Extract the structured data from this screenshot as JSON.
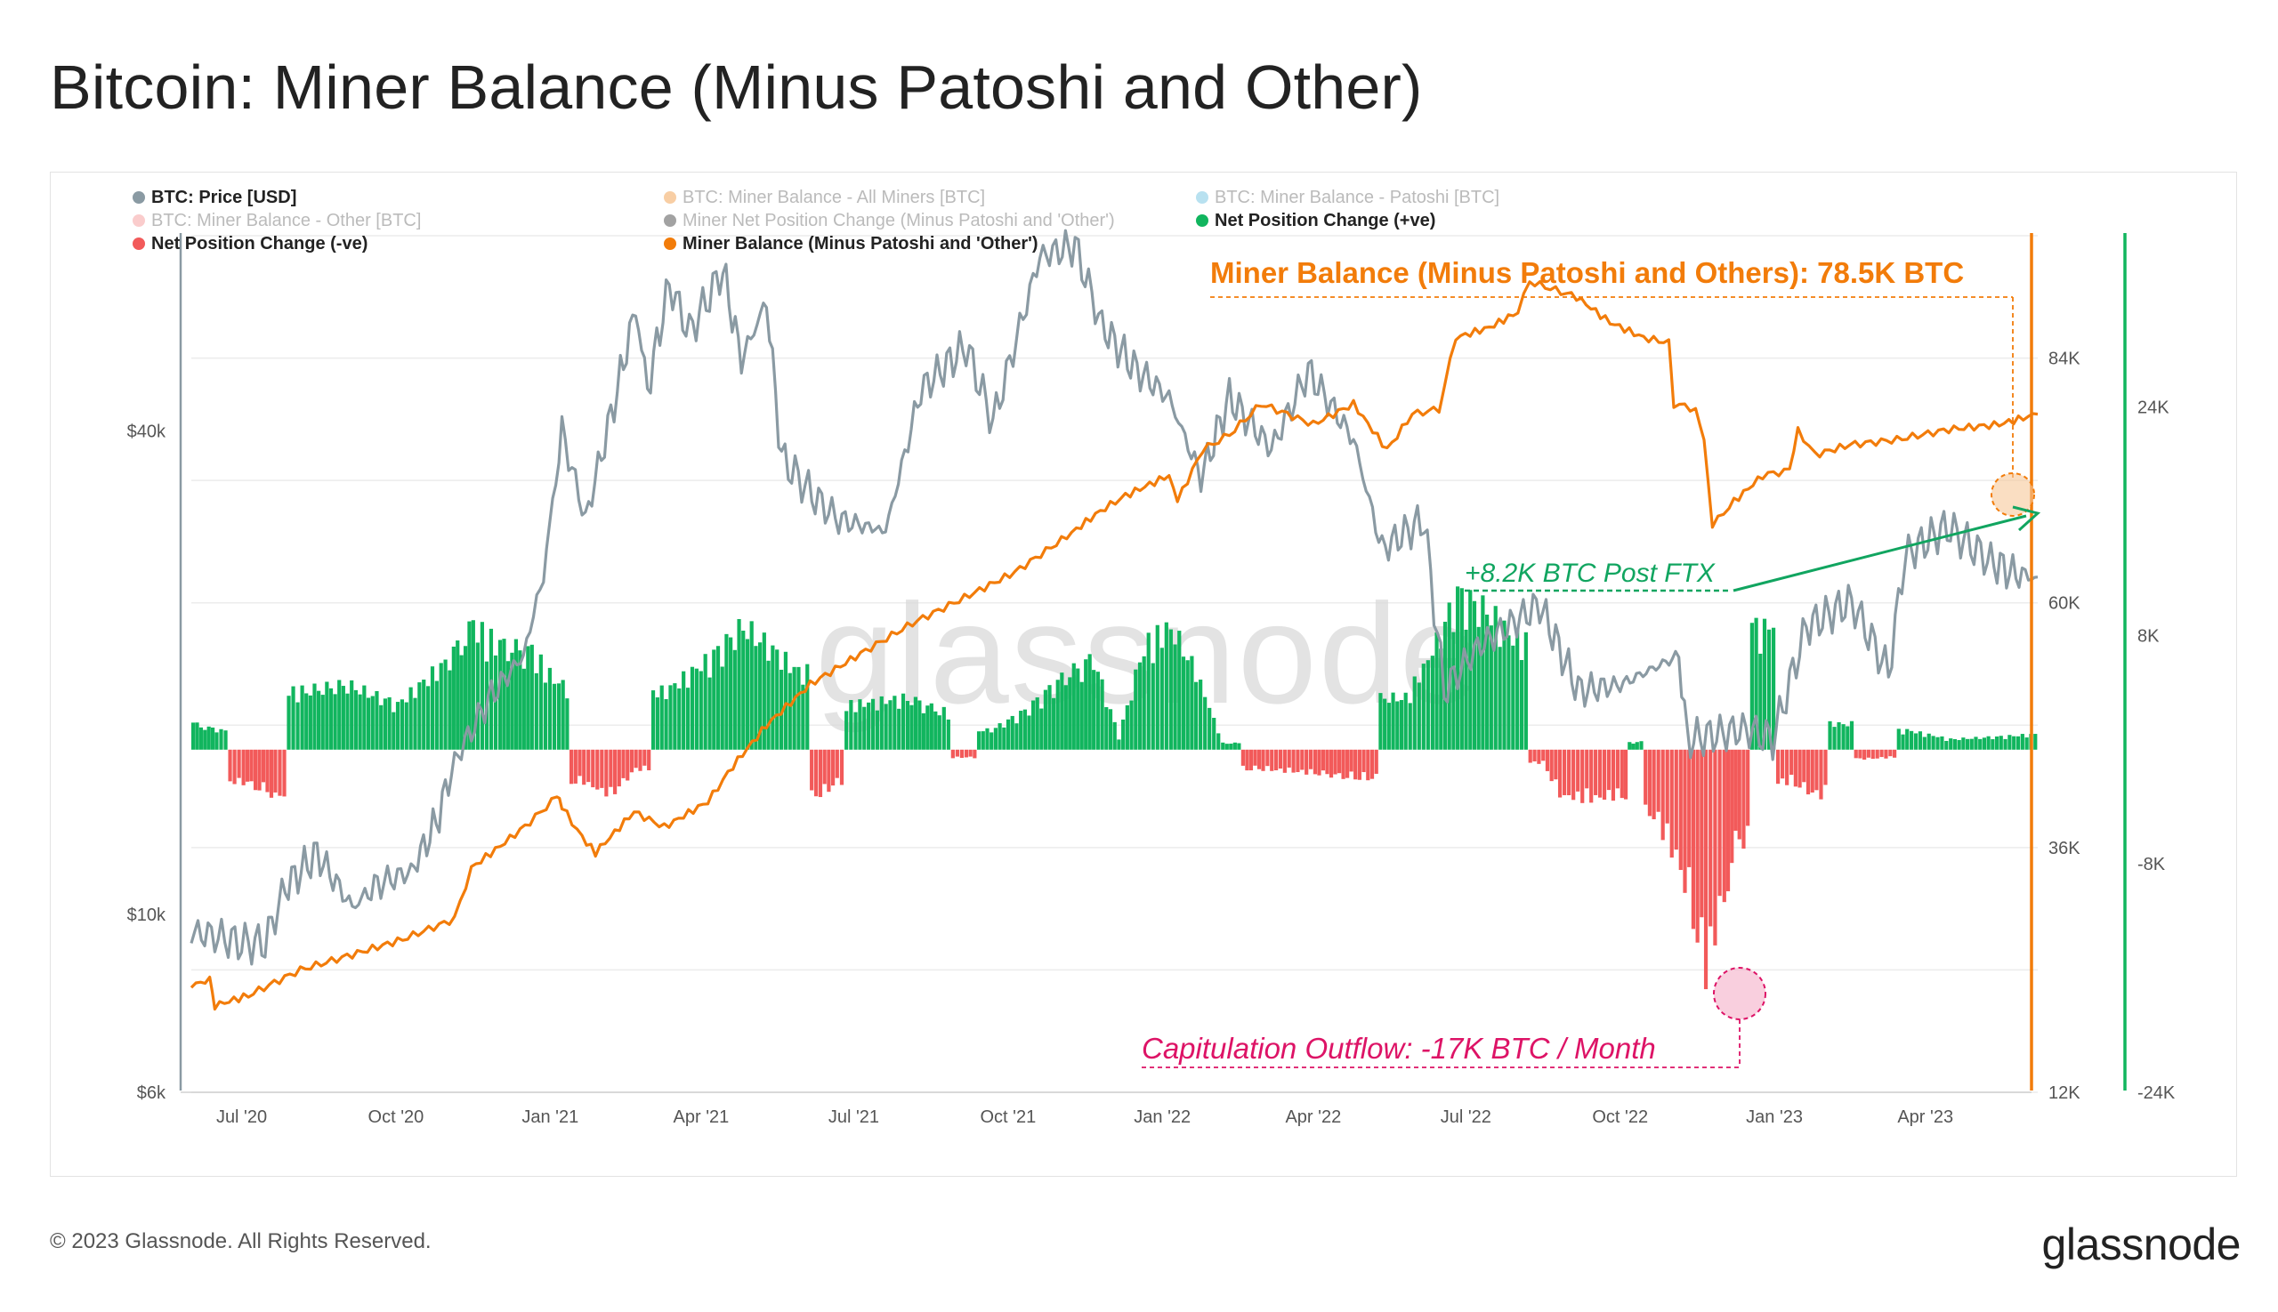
{
  "header": {
    "title": "Bitcoin: Miner Balance (Minus Patoshi and Other)"
  },
  "footer": {
    "copyright": "© 2023 Glassnode. All Rights Reserved.",
    "brand": "glassnode"
  },
  "watermark": "glassnode",
  "colors": {
    "price": "#8a9aa3",
    "balance": "#f27c0a",
    "positive": "#11b55e",
    "negative": "#f25a5a",
    "annotation_pink": "#dd1366",
    "annotation_green": "#11a560"
  },
  "chart_data": {
    "type": "line",
    "title": "Bitcoin: Miner Balance (Minus Patoshi and Other)",
    "grid": true,
    "legend_placement": "top-left",
    "legend": [
      {
        "label": "BTC: Price [USD]",
        "color": "#8a9aa3",
        "active": true
      },
      {
        "label": "BTC: Miner Balance - All Miners [BTC]",
        "color": "#f2a65a",
        "active": false
      },
      {
        "label": "BTC: Miner Balance - Patoshi [BTC]",
        "color": "#7ec8e3",
        "active": false
      },
      {
        "label": "BTC: Miner Balance - Other [BTC]",
        "color": "#f5a3a3",
        "active": false
      },
      {
        "label": "Miner Net Position Change (Minus Patoshi and 'Other')",
        "color": "#555555",
        "active": false
      },
      {
        "label": "Net Position Change (+ve)",
        "color": "#11b55e",
        "active": true
      },
      {
        "label": "Net Position Change (-ve)",
        "color": "#f25a5a",
        "active": true
      },
      {
        "label": "Miner Balance (Minus Patoshi and 'Other')",
        "color": "#f27c0a",
        "active": true
      }
    ],
    "x_ticks": [
      "Jul '20",
      "Oct '20",
      "Jan '21",
      "Apr '21",
      "Jul '21",
      "Oct '21",
      "Jan '22",
      "Apr '22",
      "Jul '22",
      "Oct '22",
      "Jan '23",
      "Apr '23"
    ],
    "x_range": [
      "2020-06-01",
      "2023-06-07"
    ],
    "y_price": {
      "scale": "log",
      "ticks": [
        "$6k",
        "$10k",
        "$40k"
      ],
      "range": [
        6000,
        70000
      ]
    },
    "y_balance": {
      "ticks": [
        "12K",
        "36K",
        "60K",
        "84K"
      ],
      "range": [
        12000,
        96000
      ]
    },
    "y_netchange": {
      "ticks": [
        "-24K",
        "-8K",
        "8K",
        "24K"
      ],
      "range": [
        -24000,
        36000
      ]
    },
    "series": [
      {
        "name": "BTC: Price [USD]",
        "axis": "price",
        "points": [
          [
            "2020-06-01",
            9500
          ],
          [
            "2020-06-15",
            9400
          ],
          [
            "2020-07-01",
            9200
          ],
          [
            "2020-07-15",
            9200
          ],
          [
            "2020-07-27",
            10800
          ],
          [
            "2020-08-15",
            11900
          ],
          [
            "2020-09-05",
            10200
          ],
          [
            "2020-09-20",
            10900
          ],
          [
            "2020-10-10",
            11300
          ],
          [
            "2020-10-25",
            13000
          ],
          [
            "2020-11-05",
            15500
          ],
          [
            "2020-11-25",
            18500
          ],
          [
            "2020-12-16",
            21000
          ],
          [
            "2020-12-28",
            26500
          ],
          [
            "2021-01-08",
            40000
          ],
          [
            "2021-01-22",
            31000
          ],
          [
            "2021-02-10",
            45000
          ],
          [
            "2021-02-21",
            57000
          ],
          [
            "2021-02-28",
            45000
          ],
          [
            "2021-03-13",
            61000
          ],
          [
            "2021-03-25",
            53000
          ],
          [
            "2021-04-14",
            63500
          ],
          [
            "2021-04-25",
            49000
          ],
          [
            "2021-05-10",
            58000
          ],
          [
            "2021-05-19",
            37000
          ],
          [
            "2021-06-08",
            33000
          ],
          [
            "2021-06-22",
            31000
          ],
          [
            "2021-07-20",
            30000
          ],
          [
            "2021-08-10",
            45000
          ],
          [
            "2021-09-06",
            51000
          ],
          [
            "2021-09-22",
            41000
          ],
          [
            "2021-10-20",
            66000
          ],
          [
            "2021-11-10",
            68000
          ],
          [
            "2021-11-26",
            54000
          ],
          [
            "2021-12-15",
            48000
          ],
          [
            "2022-01-05",
            44000
          ],
          [
            "2022-01-24",
            35000
          ],
          [
            "2022-02-10",
            44000
          ],
          [
            "2022-03-07",
            38000
          ],
          [
            "2022-03-29",
            47500
          ],
          [
            "2022-04-25",
            39000
          ],
          [
            "2022-05-12",
            28500
          ],
          [
            "2022-06-06",
            31000
          ],
          [
            "2022-06-18",
            19000
          ],
          [
            "2022-07-08",
            21500
          ],
          [
            "2022-08-14",
            24300
          ],
          [
            "2022-09-06",
            19000
          ],
          [
            "2022-10-01",
            19300
          ],
          [
            "2022-11-05",
            21000
          ],
          [
            "2022-11-10",
            16500
          ],
          [
            "2022-12-15",
            17000
          ],
          [
            "2022-12-31",
            16500
          ],
          [
            "2023-01-20",
            22800
          ],
          [
            "2023-02-16",
            24500
          ],
          [
            "2023-03-10",
            20000
          ],
          [
            "2023-03-20",
            28000
          ],
          [
            "2023-04-14",
            30400
          ],
          [
            "2023-05-10",
            27500
          ],
          [
            "2023-05-25",
            26500
          ],
          [
            "2023-06-07",
            26300
          ]
        ]
      },
      {
        "name": "Miner Balance (Minus Patoshi and 'Other')",
        "axis": "balance",
        "points": [
          [
            "2020-06-01",
            22500
          ],
          [
            "2020-06-12",
            23000
          ],
          [
            "2020-06-15",
            20500
          ],
          [
            "2020-07-05",
            21500
          ],
          [
            "2020-08-05",
            24000
          ],
          [
            "2020-09-05",
            25500
          ],
          [
            "2020-10-05",
            27000
          ],
          [
            "2020-11-05",
            29000
          ],
          [
            "2020-11-15",
            34000
          ],
          [
            "2020-12-05",
            36500
          ],
          [
            "2020-12-20",
            38500
          ],
          [
            "2021-01-05",
            41000
          ],
          [
            "2021-01-08",
            40000
          ],
          [
            "2021-01-20",
            37000
          ],
          [
            "2021-01-28",
            35500
          ],
          [
            "2021-02-20",
            39500
          ],
          [
            "2021-03-10",
            38000
          ],
          [
            "2021-04-05",
            40500
          ],
          [
            "2021-04-20",
            44000
          ],
          [
            "2021-05-10",
            48000
          ],
          [
            "2021-06-05",
            52000
          ],
          [
            "2021-07-05",
            55000
          ],
          [
            "2021-08-05",
            58000
          ],
          [
            "2021-09-05",
            60500
          ],
          [
            "2021-10-05",
            63000
          ],
          [
            "2021-11-05",
            66500
          ],
          [
            "2021-11-25",
            69000
          ],
          [
            "2021-12-10",
            70500
          ],
          [
            "2022-01-05",
            72500
          ],
          [
            "2022-01-10",
            70000
          ],
          [
            "2022-01-25",
            75000
          ],
          [
            "2022-02-10",
            76500
          ],
          [
            "2022-03-01",
            79500
          ],
          [
            "2022-04-01",
            77500
          ],
          [
            "2022-04-25",
            79500
          ],
          [
            "2022-05-15",
            75000
          ],
          [
            "2022-05-30",
            78500
          ],
          [
            "2022-06-15",
            79000
          ],
          [
            "2022-06-25",
            86000
          ],
          [
            "2022-07-15",
            87000
          ],
          [
            "2022-08-01",
            88500
          ],
          [
            "2022-08-08",
            91500
          ],
          [
            "2022-09-05",
            90000
          ],
          [
            "2022-09-25",
            87500
          ],
          [
            "2022-10-15",
            86000
          ],
          [
            "2022-10-30",
            85500
          ],
          [
            "2022-11-02",
            79500
          ],
          [
            "2022-11-15",
            79000
          ],
          [
            "2022-11-20",
            76000
          ],
          [
            "2022-11-25",
            67500
          ],
          [
            "2022-12-05",
            69500
          ],
          [
            "2022-12-25",
            72500
          ],
          [
            "2023-01-10",
            73000
          ],
          [
            "2023-01-15",
            77000
          ],
          [
            "2023-01-25",
            74500
          ],
          [
            "2023-02-15",
            75500
          ],
          [
            "2023-03-15",
            76000
          ],
          [
            "2023-04-15",
            77000
          ],
          [
            "2023-05-15",
            77500
          ],
          [
            "2023-06-07",
            78500
          ]
        ]
      },
      {
        "name": "Net Position Change",
        "axis": "netchange",
        "type": "bar",
        "points": [
          [
            "2020-06-01",
            2000
          ],
          [
            "2020-06-15",
            1500
          ],
          [
            "2020-07-01",
            -2500
          ],
          [
            "2020-07-20",
            -3500
          ],
          [
            "2020-08-05",
            4500
          ],
          [
            "2020-09-01",
            5000
          ],
          [
            "2020-10-01",
            3500
          ],
          [
            "2020-11-01",
            7000
          ],
          [
            "2020-11-15",
            9500
          ],
          [
            "2020-12-01",
            8000
          ],
          [
            "2020-12-20",
            7500
          ],
          [
            "2021-01-05",
            5000
          ],
          [
            "2021-01-20",
            -2500
          ],
          [
            "2021-02-05",
            -3500
          ],
          [
            "2021-02-20",
            -1500
          ],
          [
            "2021-03-10",
            4500
          ],
          [
            "2021-04-05",
            7000
          ],
          [
            "2021-04-25",
            9500
          ],
          [
            "2021-05-10",
            8000
          ],
          [
            "2021-05-28",
            6000
          ],
          [
            "2021-06-10",
            -3500
          ],
          [
            "2021-06-20",
            -2500
          ],
          [
            "2021-07-01",
            3500
          ],
          [
            "2021-08-01",
            4000
          ],
          [
            "2021-08-20",
            3000
          ],
          [
            "2021-09-05",
            -600
          ],
          [
            "2021-09-20",
            1500
          ],
          [
            "2021-10-10",
            3000
          ],
          [
            "2021-11-01",
            5500
          ],
          [
            "2021-11-20",
            7000
          ],
          [
            "2021-12-05",
            1000
          ],
          [
            "2021-12-20",
            8000
          ],
          [
            "2022-01-05",
            9500
          ],
          [
            "2022-01-20",
            6000
          ],
          [
            "2022-02-05",
            500
          ],
          [
            "2022-03-01",
            -1500
          ],
          [
            "2022-04-01",
            -1800
          ],
          [
            "2022-04-25",
            -2200
          ],
          [
            "2022-05-25",
            4000
          ],
          [
            "2022-06-10",
            7500
          ],
          [
            "2022-06-25",
            12000
          ],
          [
            "2022-07-15",
            10500
          ],
          [
            "2022-07-28",
            8500
          ],
          [
            "2022-08-15",
            -1000
          ],
          [
            "2022-08-25",
            -3500
          ],
          [
            "2022-09-10",
            -3800
          ],
          [
            "2022-10-01",
            -3500
          ],
          [
            "2022-10-10",
            600
          ],
          [
            "2022-10-20",
            -5000
          ],
          [
            "2022-11-05",
            -9000
          ],
          [
            "2022-11-20",
            -17000
          ],
          [
            "2022-12-01",
            -11000
          ],
          [
            "2022-12-10",
            -7000
          ],
          [
            "2022-12-25",
            9500
          ],
          [
            "2023-01-10",
            -2500
          ],
          [
            "2023-01-25",
            -3500
          ],
          [
            "2023-02-10",
            2000
          ],
          [
            "2023-02-25",
            -700
          ],
          [
            "2023-03-10",
            -600
          ],
          [
            "2023-03-20",
            1500
          ],
          [
            "2023-04-15",
            800
          ],
          [
            "2023-05-15",
            1000
          ],
          [
            "2023-06-07",
            1200
          ]
        ]
      }
    ],
    "annotations": {
      "balance_label": "Miner Balance (Minus Patoshi and Others): 78.5K BTC",
      "ftx_label": "+8.2K BTC Post FTX",
      "capitulation_label": "Capitulation Outflow: -17K BTC / Month"
    }
  }
}
